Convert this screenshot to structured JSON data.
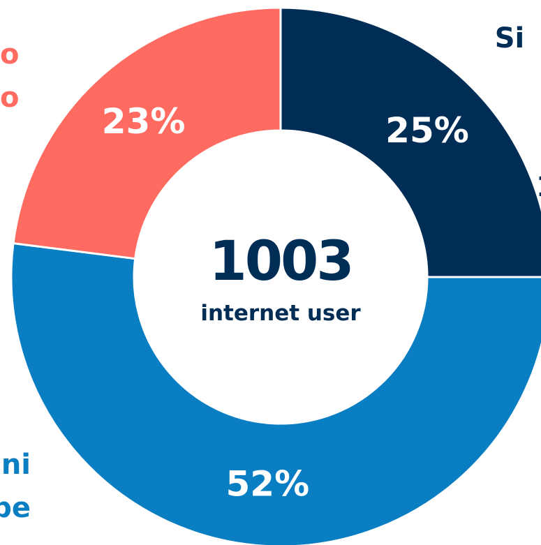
{
  "chart_data": {
    "type": "pie",
    "values": [
      25,
      52,
      23
    ],
    "value_labels": [
      "25%",
      "52%",
      "23%"
    ],
    "colors": [
      "#002d56",
      "#0a7ec2",
      "#ff6b61"
    ],
    "total": 1003,
    "center_label": "internet user",
    "annotations": [
      {
        "text": "Si",
        "color": "#002d56"
      },
      {
        "text": "1",
        "color": "#002d56"
      },
      {
        "text": "o",
        "color": "#ff6b61"
      },
      {
        "text": "o",
        "color": "#ff6b61"
      },
      {
        "text": "ni",
        "color": "#0a7ec2"
      },
      {
        "text": "pe",
        "color": "#0a7ec2"
      }
    ]
  }
}
